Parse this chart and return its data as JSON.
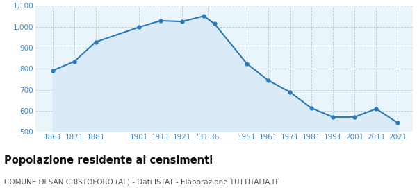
{
  "years": [
    1861,
    1871,
    1881,
    1901,
    1911,
    1921,
    1931,
    1936,
    1951,
    1961,
    1971,
    1981,
    1991,
    2001,
    2011,
    2021
  ],
  "population": [
    792,
    835,
    928,
    998,
    1029,
    1025,
    1051,
    1015,
    825,
    745,
    690,
    613,
    571,
    571,
    610,
    543
  ],
  "line_color": "#2878be",
  "fill_color": "#daeaf7",
  "marker_color": "#2878be",
  "bg_color": "#eaf4fb",
  "grid_color": "#ccddee",
  "ylim": [
    500,
    1100
  ],
  "yticks": [
    500,
    600,
    700,
    800,
    900,
    1000,
    1100
  ],
  "ytick_labels": [
    "500",
    "600",
    "700",
    "800",
    "900",
    "1,000",
    "1,100"
  ],
  "x_tick_positions": [
    1861,
    1871,
    1881,
    1901,
    1911,
    1921,
    1933,
    1951,
    1961,
    1971,
    1981,
    1991,
    2001,
    2011,
    2021
  ],
  "x_tick_labels": [
    "1861",
    "1871",
    "1881",
    "1901",
    "1911",
    "1921",
    "'31'36",
    "1951",
    "1961",
    "1971",
    "1981",
    "1991",
    "2001",
    "2011",
    "2021"
  ],
  "xlim": [
    1853,
    2028
  ],
  "title": "Popolazione residente ai censimenti",
  "subtitle": "COMUNE DI SAN CRISTOFORO (AL) - Dati ISTAT - Elaborazione TUTTITALIA.IT",
  "title_fontsize": 10.5,
  "subtitle_fontsize": 7.5,
  "tick_label_color": "#4488cc",
  "tick_fontsize": 7.5
}
